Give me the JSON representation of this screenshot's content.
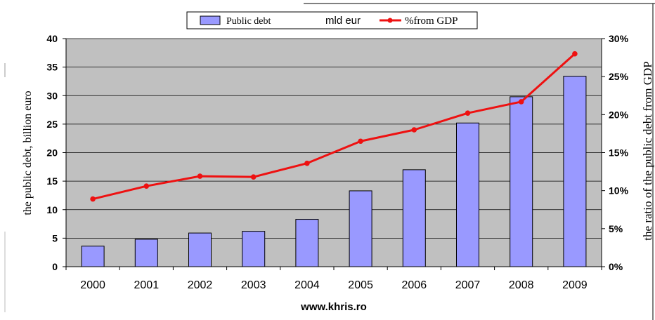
{
  "chart_data": {
    "type": "bar",
    "categories": [
      "2000",
      "2001",
      "2002",
      "2003",
      "2004",
      "2005",
      "2006",
      "2007",
      "2008",
      "2009"
    ],
    "series": [
      {
        "name": "Public debt",
        "type": "bar",
        "axis": "left",
        "values": [
          3.6,
          4.8,
          5.9,
          6.2,
          8.3,
          13.3,
          17.0,
          25.2,
          29.8,
          33.4
        ],
        "color": "#9999ff"
      },
      {
        "name": "%from GDP",
        "type": "line",
        "axis": "right",
        "values": [
          8.9,
          10.6,
          11.9,
          11.8,
          13.6,
          16.5,
          18.0,
          20.2,
          21.7,
          28.0
        ],
        "color": "#ee1111"
      }
    ],
    "legend_unit_label": "mld eur",
    "ylabel": "the public debt, billion euro",
    "ylabel_right": "the ratio of the public debt from GDP",
    "xlabel": "www.khris.ro",
    "ylim": [
      0,
      40
    ],
    "ylim_right": [
      0,
      30
    ],
    "yticks": [
      "0",
      "5",
      "10",
      "15",
      "20",
      "25",
      "30",
      "35",
      "40"
    ],
    "yticks_right": [
      "0%",
      "5%",
      "10%",
      "15%",
      "20%",
      "25%",
      "30%"
    ],
    "grid": true,
    "legend_position": "top",
    "plot_background": "#c0c0c0"
  }
}
